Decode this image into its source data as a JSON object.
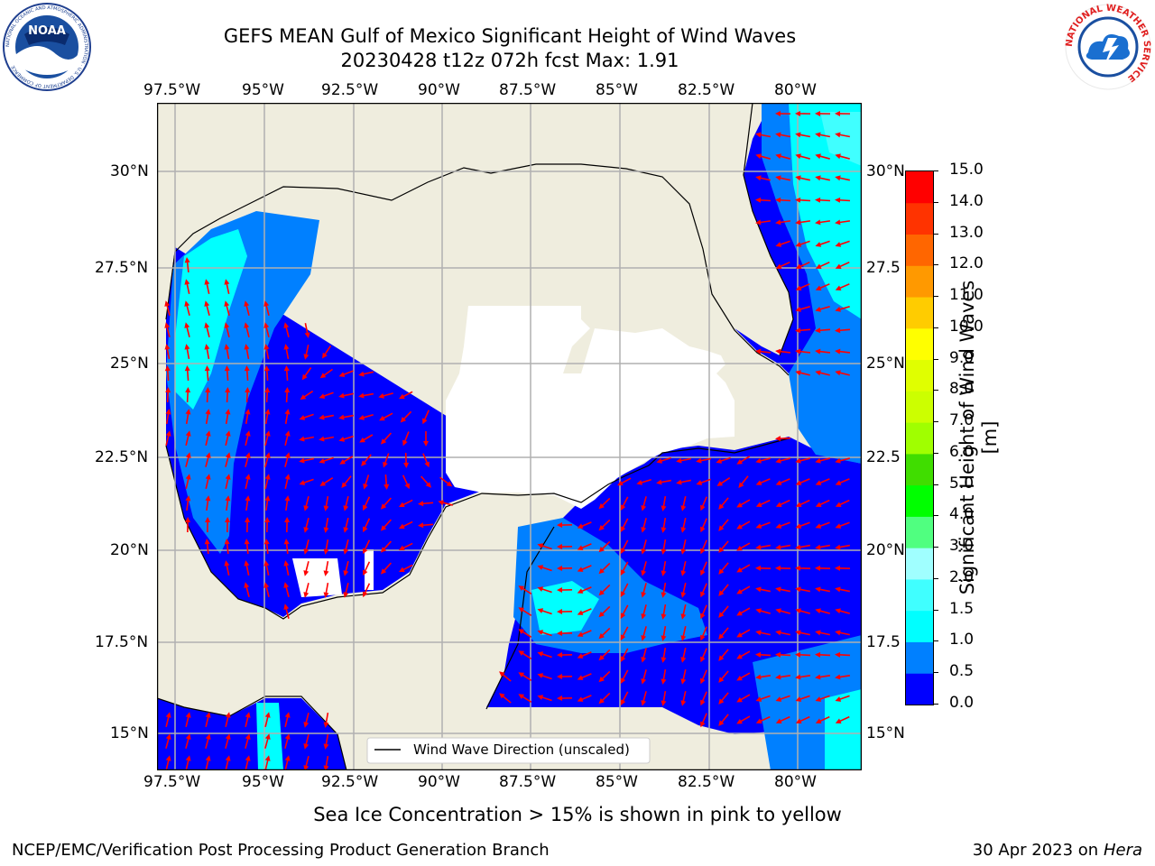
{
  "header": {
    "title_line1": "GEFS MEAN Gulf of Mexico Significant Height of Wind Waves",
    "title_line2": "20230428 t12z 072h fcst   Max: 1.91"
  },
  "logos": {
    "left": {
      "name": "noaa-logo",
      "text": "NOAA",
      "ring_text": "NATIONAL OCEANIC AND ATMOSPHERIC ADMINISTRATION · U.S. DEPARTMENT OF COMMERCE"
    },
    "right": {
      "name": "nws-logo",
      "ring_text": "NATIONAL WEATHER SERVICE"
    }
  },
  "map": {
    "lon_ticks": [
      "97.5°W",
      "95°W",
      "92.5°W",
      "90°W",
      "87.5°W",
      "85°W",
      "82.5°W",
      "80°W"
    ],
    "lat_ticks_left": [
      "30°N",
      "27.5°N",
      "25°N",
      "22.5°N",
      "20°N",
      "17.5°N",
      "15°N"
    ],
    "lat_ticks_right": [
      "30°N",
      "27.5",
      "25°N",
      "22.5",
      "20°N",
      "17.5",
      "15°N"
    ],
    "legend_label": "Wind Wave Direction (unscaled)",
    "colors": {
      "land": "#efedde",
      "arrow": "#ff0000",
      "grid": "#b0b0b0"
    }
  },
  "colorbar": {
    "label": "Significant Height of Wind Waves [m]",
    "ticks": [
      "0.0",
      "0.5",
      "1.0",
      "1.5",
      "2.0",
      "3.0",
      "4.0",
      "5.0",
      "6.0",
      "7.0",
      "8.0",
      "9.0",
      "10.0",
      "11.0",
      "12.0",
      "13.0",
      "14.0",
      "15.0"
    ],
    "colors": [
      "#0000ff",
      "#0080ff",
      "#00ffff",
      "#40ffff",
      "#a0ffff",
      "#50ff80",
      "#00ff00",
      "#40dd00",
      "#a0ff00",
      "#ccff00",
      "#e0ff00",
      "#ffff00",
      "#ffcc00",
      "#ff9900",
      "#ff6600",
      "#ff3300",
      "#ff0000"
    ]
  },
  "notes": {
    "sea_ice": "Sea Ice Concentration > 15% is shown in pink to yellow",
    "credit": "NCEP/EMC/Verification Post Processing Product Generation Branch",
    "date": "30 Apr 2023 on ",
    "machine": "Hera"
  }
}
